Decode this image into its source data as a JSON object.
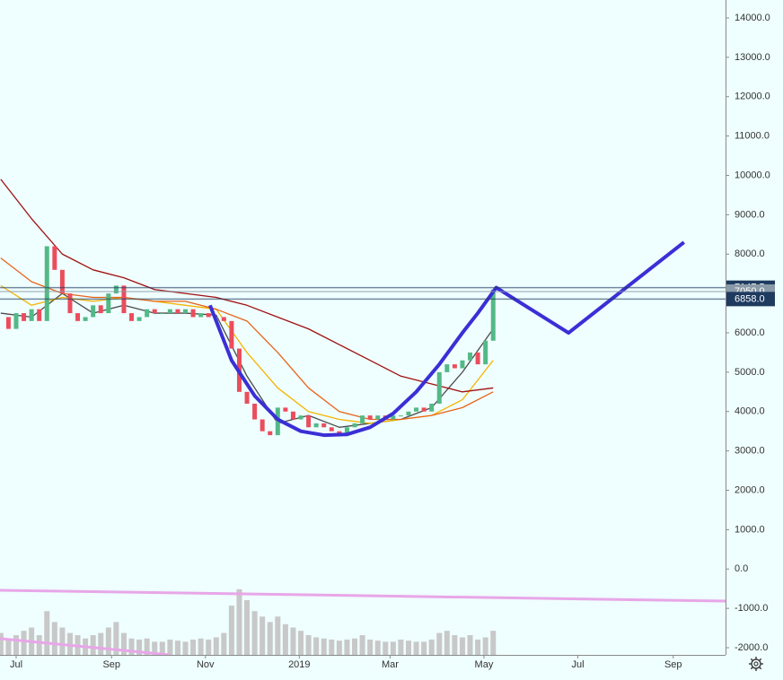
{
  "chart_data": {
    "type": "candlestick",
    "xlim": [
      -10.5,
      461
    ],
    "ylim": [
      -2182,
      14456
    ],
    "xticks": [
      {
        "value": 0,
        "label": "Jul"
      },
      {
        "value": 62,
        "label": "Sep"
      },
      {
        "value": 123,
        "label": "Nov"
      },
      {
        "value": 184,
        "label": "2019"
      },
      {
        "value": 243,
        "label": "Mar"
      },
      {
        "value": 304,
        "label": "May"
      },
      {
        "value": 365,
        "label": "Jul"
      },
      {
        "value": 427,
        "label": "Sep"
      }
    ],
    "yticks": [
      {
        "value": 14000,
        "label": "14000.0"
      },
      {
        "value": 13000,
        "label": "13000.0"
      },
      {
        "value": 12000,
        "label": "12000.0"
      },
      {
        "value": 11000,
        "label": "11000.0"
      },
      {
        "value": 10000,
        "label": "10000.0"
      },
      {
        "value": 9000,
        "label": "9000.0"
      },
      {
        "value": 8000,
        "label": "8000.0"
      },
      {
        "value": 7000,
        "label": "7000.0"
      },
      {
        "value": 6000,
        "label": "6000.0"
      },
      {
        "value": 5000,
        "label": "5000.0"
      },
      {
        "value": 4000,
        "label": "4000.0"
      },
      {
        "value": 3000,
        "label": "3000.0"
      },
      {
        "value": 2000,
        "label": "2000.0"
      },
      {
        "value": 1000,
        "label": "1000.0"
      },
      {
        "value": 0,
        "label": "0.0"
      },
      {
        "value": -1000,
        "label": "-1000.0"
      },
      {
        "value": -2000,
        "label": "-2000.0"
      }
    ],
    "candles": {
      "up_color": "#53b987",
      "down_color": "#eb4d5c",
      "x": [
        -10,
        -5,
        0,
        5,
        10,
        15,
        20,
        25,
        30,
        35,
        40,
        45,
        50,
        55,
        60,
        65,
        70,
        75,
        80,
        85,
        90,
        95,
        100,
        105,
        110,
        115,
        120,
        125,
        130,
        135,
        140,
        145,
        150,
        155,
        160,
        165,
        170,
        175,
        180,
        185,
        190,
        195,
        200,
        205,
        210,
        215,
        220,
        225,
        230,
        235,
        240,
        245,
        250,
        255,
        260,
        265,
        270,
        275,
        280,
        285,
        290,
        295,
        300,
        305,
        310
      ],
      "values": [
        6400,
        6100,
        6500,
        6300,
        6600,
        6300,
        8200,
        7600,
        7000,
        6500,
        6300,
        6400,
        6700,
        6500,
        7000,
        7200,
        6500,
        6300,
        6400,
        6600,
        6500,
        6500,
        6600,
        6500,
        6600,
        6400,
        6500,
        6400,
        6400,
        6300,
        5600,
        4500,
        4200,
        3800,
        3500,
        3400,
        4100,
        4000,
        3800,
        3900,
        3600,
        3700,
        3600,
        3500,
        3400,
        3600,
        3700,
        3900,
        3800,
        3900,
        3800,
        3900,
        3900,
        4000,
        4100,
        4000,
        4200,
        5000,
        5200,
        5100,
        5300,
        5500,
        5200,
        5800,
        7100
      ]
    },
    "volume": {
      "color": "#c8c8c8",
      "vlim": [
        0,
        100
      ],
      "values": [
        20,
        15,
        18,
        22,
        25,
        18,
        40,
        30,
        25,
        20,
        18,
        15,
        18,
        20,
        25,
        30,
        20,
        15,
        14,
        15,
        12,
        12,
        14,
        13,
        12,
        14,
        15,
        14,
        16,
        20,
        45,
        60,
        50,
        40,
        35,
        30,
        35,
        28,
        25,
        22,
        18,
        16,
        15,
        14,
        13,
        14,
        15,
        18,
        14,
        13,
        12,
        12,
        14,
        13,
        12,
        12,
        14,
        20,
        22,
        18,
        16,
        18,
        14,
        16,
        22
      ]
    },
    "moving_averages": [
      {
        "color": "#4a4a4a",
        "x": [
          -10,
          10,
          30,
          50,
          70,
          90,
          110,
          130,
          150,
          170,
          190,
          210,
          230,
          250,
          270,
          290,
          310
        ],
        "values": [
          6500,
          6400,
          7000,
          6500,
          6700,
          6500,
          6500,
          6450,
          4900,
          3700,
          3900,
          3600,
          3700,
          3800,
          4100,
          5000,
          6100
        ]
      },
      {
        "color": "#f5b400",
        "x": [
          -10,
          10,
          30,
          50,
          70,
          90,
          110,
          130,
          150,
          170,
          190,
          210,
          230,
          250,
          270,
          290,
          310
        ],
        "values": [
          7200,
          6700,
          6900,
          6800,
          6900,
          6800,
          6700,
          6600,
          5500,
          4600,
          4000,
          3800,
          3700,
          3800,
          3900,
          4300,
          5300
        ]
      },
      {
        "color": "#e8651a",
        "x": [
          -10,
          10,
          30,
          50,
          70,
          90,
          110,
          130,
          150,
          170,
          190,
          210,
          230,
          250,
          270,
          290,
          310
        ],
        "values": [
          7900,
          7300,
          7000,
          6900,
          6900,
          6800,
          6800,
          6600,
          6300,
          5500,
          4600,
          4000,
          3800,
          3800,
          3900,
          4100,
          4500
        ]
      },
      {
        "color": "#a01010",
        "x": [
          -10,
          10,
          30,
          50,
          70,
          90,
          110,
          130,
          150,
          170,
          190,
          210,
          230,
          250,
          270,
          290,
          310
        ],
        "values": [
          9900,
          8900,
          8000,
          7600,
          7400,
          7100,
          7000,
          6900,
          6700,
          6400,
          6100,
          5700,
          5300,
          4900,
          4700,
          4500,
          4600
        ]
      }
    ],
    "drawings": [
      {
        "color": "#3a2fd6",
        "x": [
          126,
          140,
          155,
          170,
          185,
          200,
          215,
          230,
          245,
          260,
          275,
          290,
          300,
          312,
          359,
          434
        ],
        "values": [
          6700,
          5300,
          4400,
          3800,
          3500,
          3400,
          3420,
          3600,
          3950,
          4500,
          5200,
          6000,
          6500,
          7150,
          6000,
          8300
        ]
      },
      {
        "color": "#e8a6e8",
        "x": [
          -10.5,
          461
        ],
        "values": [
          -541,
          -815
        ]
      },
      {
        "color": "#e8a6e8",
        "x": [
          -10.5,
          100
        ],
        "values": [
          -1770,
          -2182
        ]
      }
    ],
    "price_lines": [
      {
        "value": 7147.5,
        "color": "#1e3a5f"
      },
      {
        "value": {
          "value": 7050,
          "label": "7050.0"
        },
        "color": "#8a9aa8"
      },
      {
        "value": {
          "value": 6858,
          "label": "6858.0"
        },
        "color": "#1e3a5f"
      }
    ]
  }
}
